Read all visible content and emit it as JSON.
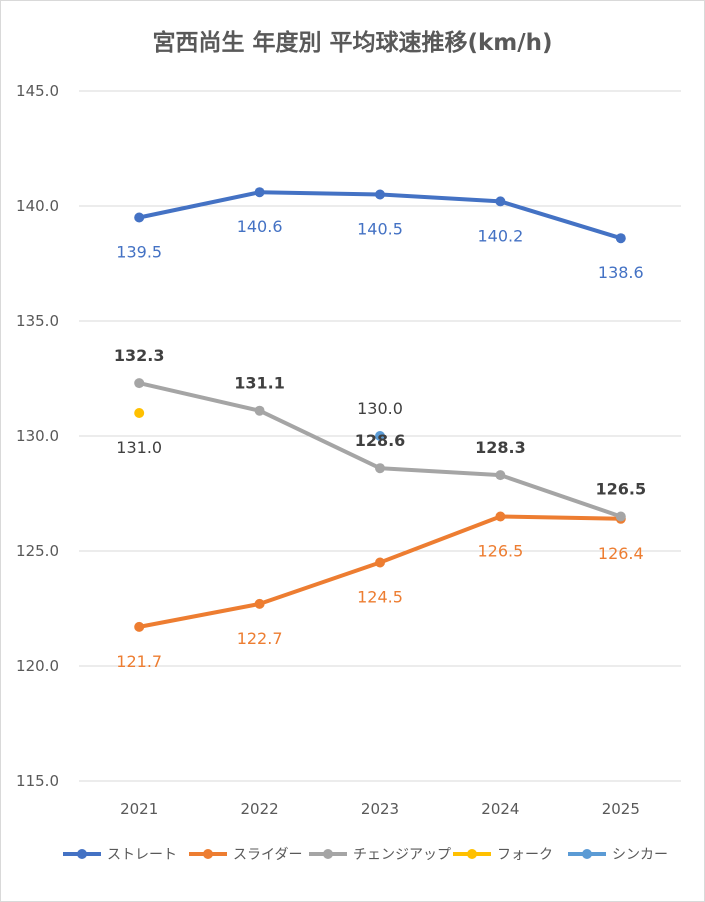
{
  "chart_data": {
    "type": "line",
    "title": "宮西尚生 年度別 平均球速推移(km/h)",
    "xlabel": "",
    "ylabel": "",
    "categories": [
      "2021",
      "2022",
      "2023",
      "2024",
      "2025"
    ],
    "ylim": [
      115.0,
      145.0
    ],
    "yticks": [
      "115.0",
      "120.0",
      "125.0",
      "130.0",
      "135.0",
      "140.0",
      "145.0"
    ],
    "grid": true,
    "legend_position": "bottom",
    "series": [
      {
        "name": "ストレート",
        "color": "#4472C4",
        "values": [
          139.5,
          140.6,
          140.5,
          140.2,
          138.6
        ],
        "labels": [
          "139.5",
          "140.6",
          "140.5",
          "140.2",
          "138.6"
        ],
        "label_pos": "below",
        "label_color": "#4472C4"
      },
      {
        "name": "スライダー",
        "color": "#ED7D31",
        "values": [
          121.7,
          122.7,
          124.5,
          126.5,
          126.4
        ],
        "labels": [
          "121.7",
          "122.7",
          "124.5",
          "126.5",
          "126.4"
        ],
        "label_pos": "below",
        "label_color": "#ED7D31"
      },
      {
        "name": "チェンジアップ",
        "color": "#A5A5A5",
        "values": [
          132.3,
          131.1,
          128.6,
          128.3,
          126.5
        ],
        "labels": [
          "132.3",
          "131.1",
          "128.6",
          "128.3",
          "126.5"
        ],
        "label_pos": "above",
        "label_color": "#404040",
        "label_bold": true
      },
      {
        "name": "フォーク",
        "color": "#FFC000",
        "values": [
          131.0,
          null,
          null,
          null,
          null
        ],
        "labels": [
          "131.0",
          null,
          null,
          null,
          null
        ],
        "label_pos": "below",
        "label_color": "#404040"
      },
      {
        "name": "シンカー",
        "color": "#5B9BD5",
        "values": [
          null,
          null,
          130.0,
          null,
          null
        ],
        "labels": [
          null,
          null,
          "130.0",
          null,
          null
        ],
        "label_pos": "above",
        "label_color": "#404040"
      }
    ]
  }
}
